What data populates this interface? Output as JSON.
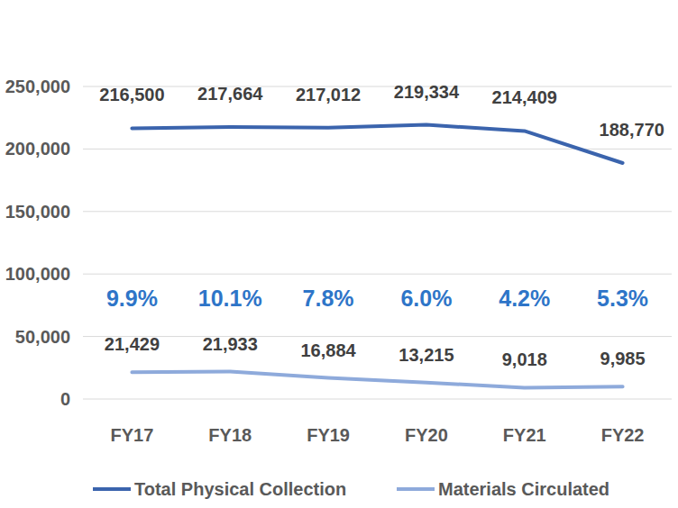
{
  "chart_data": {
    "type": "line",
    "categories": [
      "FY17",
      "FY18",
      "FY19",
      "FY20",
      "FY21",
      "FY22"
    ],
    "series": [
      {
        "name": "Total Physical Collection",
        "color": "#3b64ad",
        "values": [
          216500,
          217664,
          217012,
          219334,
          214409,
          188770
        ],
        "value_labels": [
          "216,500",
          "217,664",
          "217,012",
          "219,334",
          "214,409",
          "188,770"
        ]
      },
      {
        "name": "Materials Circulated",
        "color": "#8eaadb",
        "values": [
          21429,
          21933,
          16884,
          13215,
          9018,
          9985
        ],
        "value_labels": [
          "21,429",
          "21,933",
          "16,884",
          "13,215",
          "9,018",
          "9,985"
        ]
      }
    ],
    "annotations": [
      "9.9%",
      "10.1%",
      "7.8%",
      "6.0%",
      "4.2%",
      "5.3%"
    ],
    "ylim": [
      0,
      250000
    ],
    "yticks": [
      0,
      {
        "value": 50000,
        "label": "50,000"
      },
      {
        "value": 100000,
        "label": "100,000"
      },
      {
        "value": 150000,
        "label": "150,000"
      },
      {
        "value": 200000,
        "label": "200,000"
      },
      {
        "value": 250000,
        "label": "250,000"
      }
    ],
    "grid": true,
    "data_labels": true,
    "legend": "bottom"
  }
}
